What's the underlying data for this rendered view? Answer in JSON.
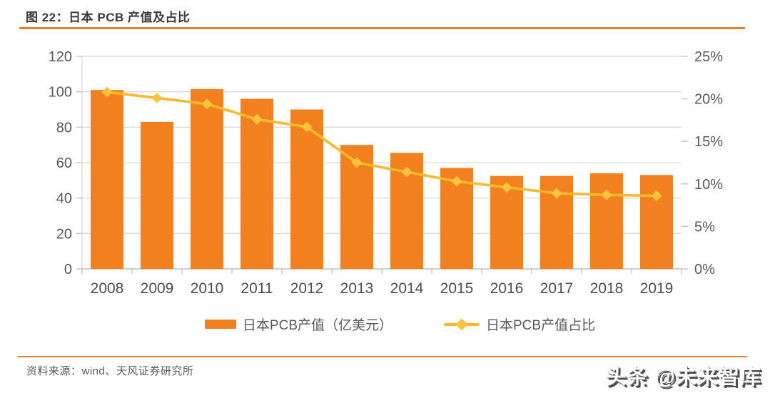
{
  "header": {
    "title": "图 22：日本 PCB 产值及占比"
  },
  "footer": {
    "source": "资料来源：wind、天风证券研究所",
    "watermark": "头条 @未来智库"
  },
  "colors": {
    "bar": "#f2801e",
    "line": "#fbba2e",
    "marker": "#fcc33c",
    "grid": "#dadada",
    "axis": "#bfbfbf",
    "axis_label": "#595959",
    "year_label": "#4d4d4d",
    "rule": "#e8822a"
  },
  "chart_data": {
    "type": "bar+line",
    "title": "图 22：日本 PCB 产值及占比",
    "categories": [
      "2008",
      "2009",
      "2010",
      "2011",
      "2012",
      "2013",
      "2014",
      "2015",
      "2016",
      "2017",
      "2018",
      "2019"
    ],
    "series": [
      {
        "name": "日本PCB产值（亿美元）",
        "type": "bar",
        "axis": "left",
        "values": [
          101,
          83,
          101.5,
          96,
          90,
          70,
          65.5,
          57,
          52.5,
          52.5,
          54,
          53
        ]
      },
      {
        "name": "日本PCB产值占比",
        "type": "line",
        "axis": "right",
        "values": [
          20.8,
          20.1,
          19.4,
          17.6,
          16.7,
          12.5,
          11.4,
          10.3,
          9.6,
          8.9,
          8.7,
          8.6
        ]
      }
    ],
    "left_axis": {
      "ticks": [
        0,
        20,
        40,
        60,
        80,
        100,
        120
      ],
      "range": [
        0,
        120
      ]
    },
    "right_axis": {
      "ticks": [
        0,
        5,
        10,
        15,
        20,
        25
      ],
      "tick_suffix": "%",
      "range": [
        0,
        25
      ]
    },
    "legend_position": "bottom",
    "grid": true
  }
}
